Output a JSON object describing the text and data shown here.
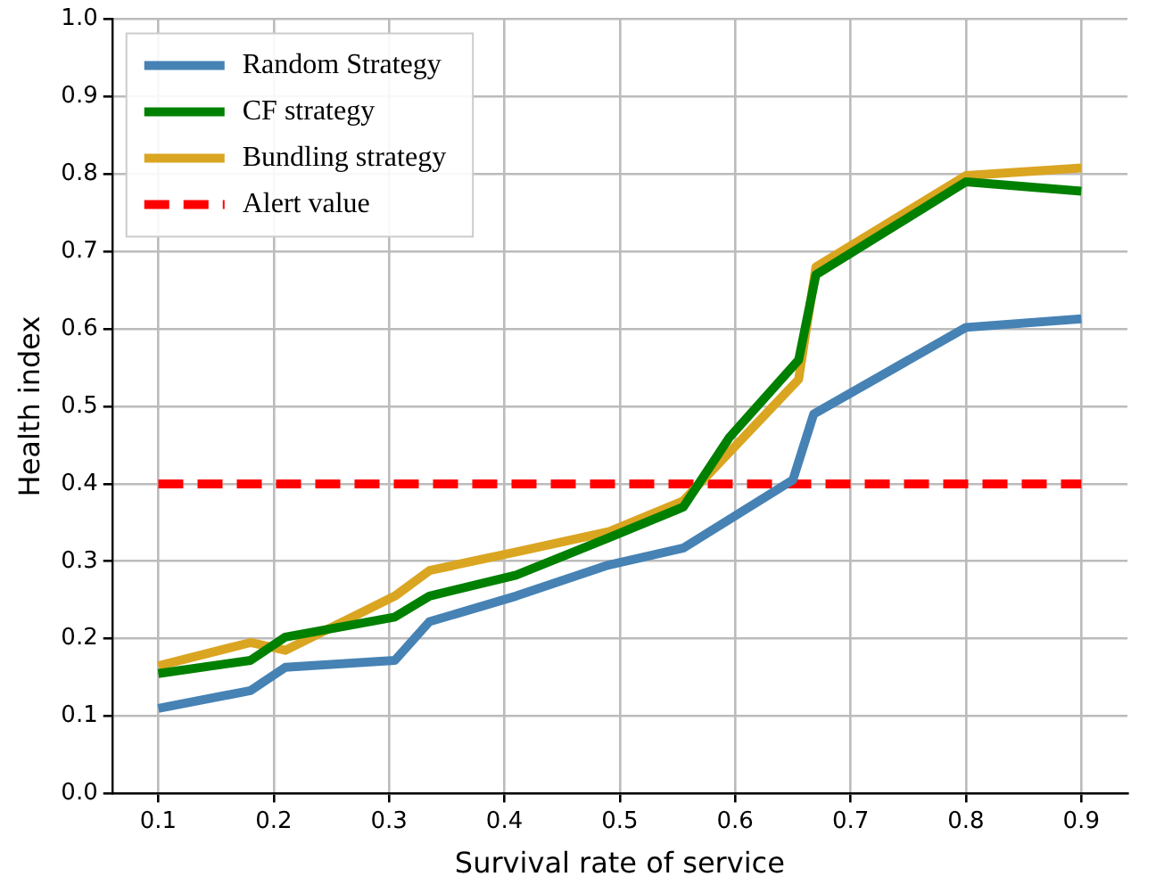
{
  "chart_data": {
    "type": "line",
    "xlabel": "Survival rate of service",
    "ylabel": "Health index",
    "xlim": [
      0.06,
      0.94
    ],
    "xticks": [
      0.1,
      0.2,
      0.3,
      0.4,
      0.5,
      0.6,
      0.7,
      0.8,
      0.9
    ],
    "ylim": [
      0,
      1
    ],
    "yticks": [
      {
        "value": 0,
        "label": "0.0"
      },
      0.1,
      0.2,
      0.3,
      0.4,
      0.5,
      0.6,
      0.7,
      0.8,
      0.9,
      {
        "value": 1,
        "label": "1.0"
      }
    ],
    "grid": true,
    "legend": "top left",
    "marker": "none",
    "line_style": "solid",
    "series": [
      {
        "name": "Random Strategy",
        "color": "#4682b4",
        "x": [
          0.1,
          0.18,
          0.21,
          0.305,
          0.335,
          0.41,
          0.49,
          0.555,
          0.65,
          0.668,
          0.8,
          0.9
        ],
        "values": [
          0.11,
          0.133,
          0.163,
          0.172,
          0.222,
          0.255,
          0.295,
          0.317,
          0.405,
          0.49,
          0.602,
          0.613
        ]
      },
      {
        "name": "CF strategy",
        "color": "#008000",
        "x": [
          0.1,
          0.18,
          0.21,
          0.305,
          0.335,
          0.41,
          0.49,
          0.555,
          0.595,
          0.655,
          0.67,
          0.8,
          0.9
        ],
        "values": [
          0.155,
          0.172,
          0.202,
          0.228,
          0.255,
          0.282,
          0.33,
          0.37,
          0.46,
          0.56,
          0.67,
          0.79,
          0.778
        ]
      },
      {
        "name": "Bundling strategy",
        "color": "#daa520",
        "x": [
          0.1,
          0.18,
          0.21,
          0.305,
          0.335,
          0.41,
          0.49,
          0.555,
          0.655,
          0.67,
          0.8,
          0.9
        ],
        "values": [
          0.165,
          0.195,
          0.185,
          0.255,
          0.288,
          0.312,
          0.338,
          0.378,
          0.535,
          0.68,
          0.798,
          0.808
        ]
      },
      {
        "name": "Alert value",
        "color": "#ff0000",
        "line_style": "dashed",
        "x": [
          0.1,
          0.9
        ],
        "values": [
          0.4,
          0.4
        ]
      }
    ]
  }
}
